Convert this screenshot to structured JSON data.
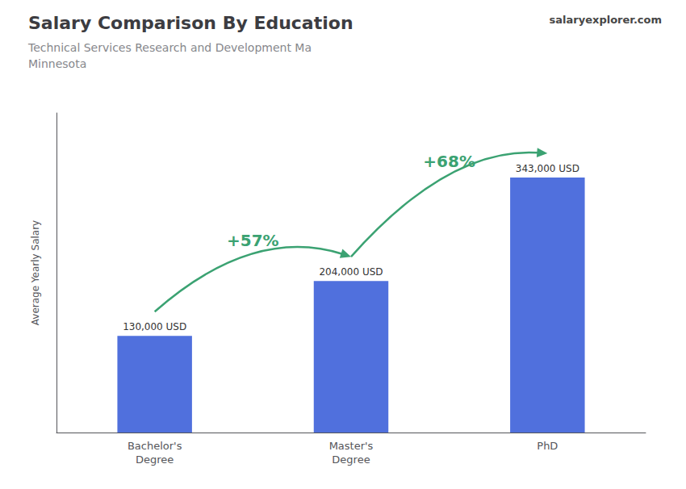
{
  "chart_data": {
    "type": "bar",
    "title": "Salary Comparison By Education",
    "subtitle": [
      "Technical Services Research and Development Ma",
      "Minnesota"
    ],
    "categories": [
      "Bachelor's\nDegree",
      "Master's\nDegree",
      "PhD"
    ],
    "values": [
      130000,
      204000,
      343000
    ],
    "value_labels": [
      "130,000 USD",
      "204,000 USD",
      "343,000 USD"
    ],
    "data_labels": true,
    "ylabel": "Average Yearly Salary",
    "ylim": [
      0,
      430000
    ],
    "tick_labels": "x",
    "grid": false,
    "annotations": [
      {
        "text": "+57%",
        "from": "Bachelor's\nDegree",
        "to": "Master's\nDegree"
      },
      {
        "text": "+68%",
        "from": "Master's\nDegree",
        "to": "PhD"
      },
      {
        "text": "salaryexplorer.com"
      }
    ]
  }
}
